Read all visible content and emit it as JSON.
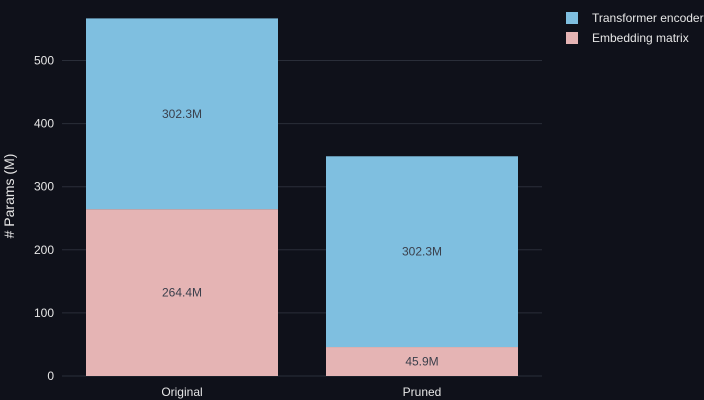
{
  "chart_data": {
    "type": "bar",
    "stacked": true,
    "categories": [
      "Original",
      "Pruned"
    ],
    "series": [
      {
        "name": "Embedding matrix",
        "values": [
          264.4,
          45.9
        ],
        "labels": [
          "264.4M",
          "45.9M"
        ],
        "color": "#e5b4b4"
      },
      {
        "name": "Transformer encoder",
        "values": [
          302.3,
          302.3
        ],
        "labels": [
          "302.3M",
          "302.3M"
        ],
        "color": "#7fbfe0"
      }
    ],
    "title": "",
    "xlabel": "",
    "ylabel": "# Params (M)",
    "ylim": [
      0,
      580
    ],
    "yticks": [
      0,
      100,
      200,
      300,
      400,
      500
    ],
    "grid": true,
    "legend_position": "top-right",
    "legend_order": [
      "Transformer encoder",
      "Embedding matrix"
    ],
    "background": "#0f111a",
    "text_color": "#e6e6e6",
    "grid_color": "#2a2e39"
  }
}
